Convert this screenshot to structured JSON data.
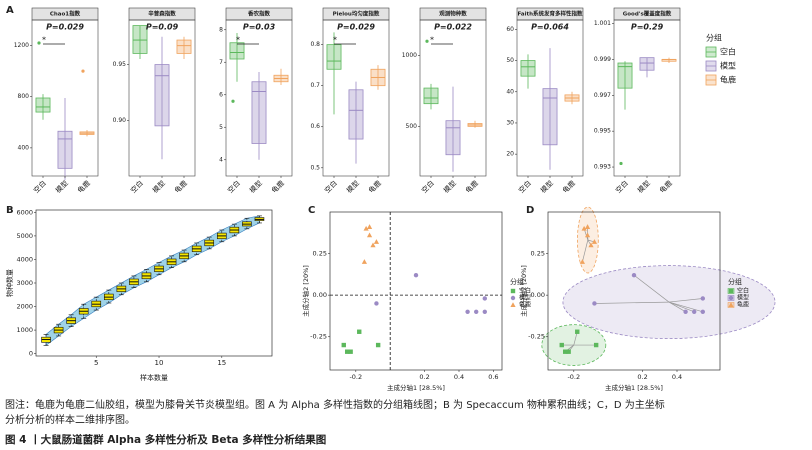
{
  "chart_data": [
    {
      "type": "box",
      "panel": "A",
      "title": "Chao1指数",
      "annotation": "P=0.029",
      "significance": "*",
      "categories": [
        "空白",
        "模型",
        "龟鹿"
      ],
      "colors": [
        "#5cb85c",
        "#9b8ac4",
        "#f0a35e"
      ],
      "boxes": [
        [
          620,
          680,
          720,
          790,
          820
        ],
        [
          150,
          240,
          470,
          530,
          790
        ],
        [
          490,
          505,
          515,
          525,
          540
        ]
      ],
      "outliers": [
        [
          1220
        ],
        [],
        [
          1000
        ]
      ],
      "ylim": [
        180,
        1400
      ],
      "yticks": [
        400,
        800,
        1200
      ]
    },
    {
      "type": "box",
      "title": "辛普森指数",
      "annotation": "P=0.09",
      "categories": [
        "空白",
        "模型",
        "龟鹿"
      ],
      "colors": [
        "#5cb85c",
        "#9b8ac4",
        "#f0a35e"
      ],
      "boxes": [
        [
          0.955,
          0.96,
          0.972,
          0.985,
          0.985
        ],
        [
          0.865,
          0.895,
          0.94,
          0.95,
          0.975
        ],
        [
          0.955,
          0.96,
          0.967,
          0.972,
          0.975
        ]
      ],
      "outliers": [
        [],
        [],
        []
      ],
      "ylim": [
        0.85,
        0.99
      ],
      "yticks": [
        {
          "value": 0.9,
          "label": "0.90"
        },
        0.95
      ]
    },
    {
      "type": "box",
      "title": "香农指数",
      "annotation": "P=0.03",
      "significance": "*",
      "categories": [
        "空白",
        "模型",
        "龟鹿"
      ],
      "colors": [
        "#5cb85c",
        "#9b8ac4",
        "#f0a35e"
      ],
      "boxes": [
        [
          6.4,
          7.1,
          7.3,
          7.6,
          7.9
        ],
        [
          4.0,
          4.5,
          6.1,
          6.4,
          6.7
        ],
        [
          6.3,
          6.4,
          6.5,
          6.6,
          6.8
        ]
      ],
      "outliers": [
        [
          5.8
        ],
        [],
        []
      ],
      "ylim": [
        3.5,
        8.3
      ],
      "yticks": [
        4,
        5,
        6,
        7,
        8
      ]
    },
    {
      "type": "box",
      "title": "Pielou均匀度指数",
      "annotation": "P=0.029",
      "significance": "*",
      "categories": [
        "空白",
        "模型",
        "龟鹿"
      ],
      "colors": [
        "#5cb85c",
        "#9b8ac4",
        "#f0a35e"
      ],
      "boxes": [
        [
          0.63,
          0.74,
          0.76,
          0.8,
          0.83
        ],
        [
          0.51,
          0.57,
          0.64,
          0.69,
          0.71
        ],
        [
          0.69,
          0.7,
          0.72,
          0.74,
          0.75
        ]
      ],
      "outliers": [
        [],
        [],
        []
      ],
      "ylim": [
        0.48,
        0.86
      ],
      "yticks": [
        0.5,
        0.6,
        0.7,
        0.8
      ]
    },
    {
      "type": "box",
      "title": "观测物种数",
      "annotation": "P=0.022",
      "significance": "*",
      "categories": [
        "空白",
        "模型",
        "龟鹿"
      ],
      "colors": [
        "#5cb85c",
        "#9b8ac4",
        "#f0a35e"
      ],
      "boxes": [
        [
          620,
          660,
          700,
          770,
          800
        ],
        [
          180,
          300,
          490,
          540,
          780
        ],
        [
          490,
          500,
          510,
          520,
          540
        ]
      ],
      "outliers": [
        [
          1100
        ],
        [],
        []
      ],
      "ylim": [
        150,
        1250
      ],
      "yticks": [
        500,
        1000
      ]
    },
    {
      "type": "box",
      "title": "Faith系统发育多样性指数",
      "annotation": "P=0.064",
      "categories": [
        "空白",
        "模型",
        "龟鹿"
      ],
      "colors": [
        "#5cb85c",
        "#9b8ac4",
        "#f0a35e"
      ],
      "boxes": [
        [
          41,
          45,
          48,
          50,
          52
        ],
        [
          15,
          23,
          38,
          41,
          54
        ],
        [
          36,
          37,
          38,
          39,
          40
        ]
      ],
      "outliers": [
        [],
        [],
        []
      ],
      "ylim": [
        13,
        63
      ],
      "yticks": [
        20,
        30,
        40,
        50,
        60
      ]
    },
    {
      "type": "box",
      "title": "Good's覆盖度指数",
      "annotation": "P=0.29",
      "categories": [
        "空白",
        "模型",
        "龟鹿"
      ],
      "colors": [
        "#5cb85c",
        "#9b8ac4",
        "#f0a35e"
      ],
      "boxes": [
        [
          0.9962,
          0.9974,
          0.9986,
          0.9988,
          0.9989
        ],
        [
          0.998,
          0.9984,
          0.9988,
          0.9991,
          0.9991
        ],
        [
          0.9988,
          0.9989,
          0.999,
          0.999,
          0.9991
        ]
      ],
      "outliers": [
        [
          0.9932
        ],
        [],
        []
      ],
      "ylim": [
        0.9925,
        1.0012
      ],
      "yticks": [
        0.993,
        0.995,
        0.997,
        0.999,
        1.001
      ]
    },
    {
      "type": "accum",
      "panel": "B",
      "x_label": "样本数量",
      "y_label": "物种数量",
      "color": "#f5e600",
      "band_color": "#9fd3e8",
      "x": [
        1,
        2,
        3,
        4,
        5,
        6,
        7,
        8,
        9,
        10,
        11,
        12,
        13,
        14,
        15,
        16,
        17,
        18
      ],
      "boxes": [
        [
          350,
          480,
          600,
          700,
          820
        ],
        [
          750,
          880,
          1000,
          1120,
          1250
        ],
        [
          1150,
          1280,
          1400,
          1520,
          1650
        ],
        [
          1500,
          1680,
          1800,
          1920,
          2100
        ],
        [
          1850,
          1990,
          2100,
          2230,
          2400
        ],
        [
          2150,
          2290,
          2400,
          2530,
          2700
        ],
        [
          2500,
          2630,
          2750,
          2870,
          3000
        ],
        [
          2800,
          2930,
          3050,
          3170,
          3300
        ],
        [
          3050,
          3180,
          3300,
          3430,
          3580
        ],
        [
          3350,
          3480,
          3600,
          3720,
          3870
        ],
        [
          3650,
          3780,
          3900,
          4020,
          4150
        ],
        [
          3900,
          4030,
          4150,
          4270,
          4400
        ],
        [
          4200,
          4330,
          4450,
          4570,
          4700
        ],
        [
          4450,
          4580,
          4700,
          4820,
          4950
        ],
        [
          4750,
          4880,
          5000,
          5120,
          5250
        ],
        [
          5000,
          5130,
          5250,
          5370,
          5500
        ],
        [
          5300,
          5420,
          5500,
          5600,
          5750
        ],
        [
          5550,
          5650,
          5700,
          5780,
          5850
        ]
      ],
      "xlim": [
        0.2,
        19
      ],
      "xticks": [
        5,
        10,
        15
      ],
      "ylim": [
        -100,
        6100
      ],
      "yticks": [
        0,
        1000,
        2000,
        3000,
        4000,
        5000,
        6000
      ]
    },
    {
      "type": "scatter",
      "panel": "C",
      "x_label": "主成分轴1 [28.5%]",
      "y_label": "主成分轴2 [20%]",
      "legend_title": "分组",
      "series": [
        {
          "name": "空白",
          "color": "#5cb85c",
          "marker": "square",
          "x": [
            -0.27,
            -0.25,
            -0.23,
            -0.18,
            -0.07
          ],
          "values": [
            -0.3,
            -0.34,
            -0.34,
            -0.22,
            -0.3
          ]
        },
        {
          "name": "模型",
          "color": "#9b8ac4",
          "marker": "circle",
          "x": [
            0.15,
            0.45,
            0.5,
            0.55,
            -0.08,
            0.55
          ],
          "values": [
            0.12,
            -0.1,
            -0.1,
            -0.1,
            -0.05,
            -0.02
          ]
        },
        {
          "name": "龟鹿",
          "color": "#f0a35e",
          "marker": "triangle",
          "x": [
            -0.14,
            -0.12,
            -0.1,
            -0.08,
            -0.15,
            -0.12
          ],
          "values": [
            0.4,
            0.36,
            0.3,
            0.32,
            0.2,
            0.41
          ]
        }
      ],
      "xlim": [
        -0.35,
        0.65
      ],
      "xticks": [
        -0.2,
        0.2,
        0.4,
        0.6
      ],
      "ylim": [
        -0.45,
        0.5
      ],
      "yticks": [
        -0.25,
        {
          "value": 0,
          "label": "0.00"
        },
        0.25
      ]
    },
    {
      "type": "scatter",
      "panel": "D",
      "ellipses": true,
      "x_label": "主成分轴1 [28.5%]",
      "y_label": "主成分轴2 [20%]",
      "legend_title": "分组",
      "series": [
        {
          "name": "空白",
          "color": "#5cb85c",
          "marker": "square",
          "x": [
            -0.27,
            -0.25,
            -0.23,
            -0.18,
            -0.07
          ],
          "values": [
            -0.3,
            -0.34,
            -0.34,
            -0.22,
            -0.3
          ]
        },
        {
          "name": "模型",
          "color": "#9b8ac4",
          "marker": "circle",
          "x": [
            0.15,
            0.45,
            0.5,
            0.55,
            -0.08,
            0.55
          ],
          "values": [
            0.12,
            -0.1,
            -0.1,
            -0.1,
            -0.05,
            -0.02
          ]
        },
        {
          "name": "龟鹿",
          "color": "#f0a35e",
          "marker": "triangle",
          "x": [
            -0.14,
            -0.12,
            -0.1,
            -0.08,
            -0.15,
            -0.12
          ],
          "values": [
            0.4,
            0.36,
            0.3,
            0.32,
            0.2,
            0.41
          ]
        }
      ],
      "xlim": [
        -0.35,
        0.65
      ],
      "xticks": [
        -0.2,
        0.2,
        0.4
      ],
      "ylim": [
        -0.45,
        0.5
      ],
      "yticks": [
        -0.25,
        {
          "value": 0,
          "label": "0.00"
        },
        0.25
      ]
    }
  ],
  "legend": {
    "title": "分组",
    "names": [
      "空白",
      "模型",
      "龟鹿"
    ],
    "colors": [
      "#5cb85c",
      "#9b8ac4",
      "#f0a35e"
    ]
  },
  "caption": [
    "图注：龟鹿为龟鹿二仙胶组，模型为膝骨关节炎模型组。图 A 为 Alpha 多样性指数的分组箱线图；B 为 Specaccum 物种累积曲线；C，D 为主坐标",
    "分析分析的样本二维排序图。"
  ],
  "figure_title": "图 4 丨大鼠肠道菌群 Alpha 多样性分析及 Beta 多样性分析结果图"
}
